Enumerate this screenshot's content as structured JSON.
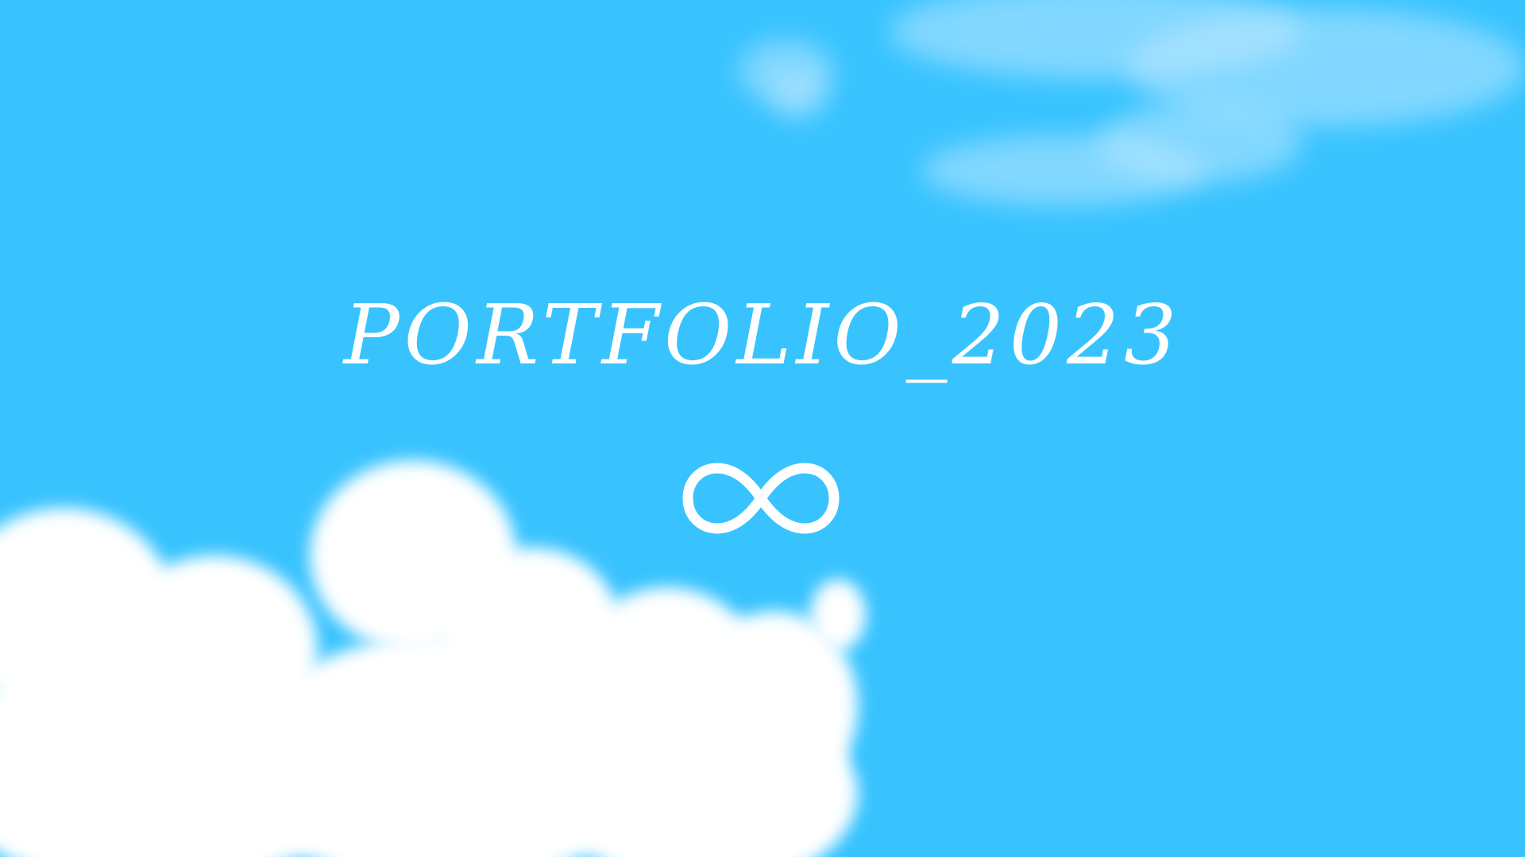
{
  "title": "PORTFOLIO_2023",
  "icon": "infinity-icon",
  "colors": {
    "background": "#38C3FF",
    "text": "#FFFFFF",
    "cloud": "#FFFFFF"
  }
}
